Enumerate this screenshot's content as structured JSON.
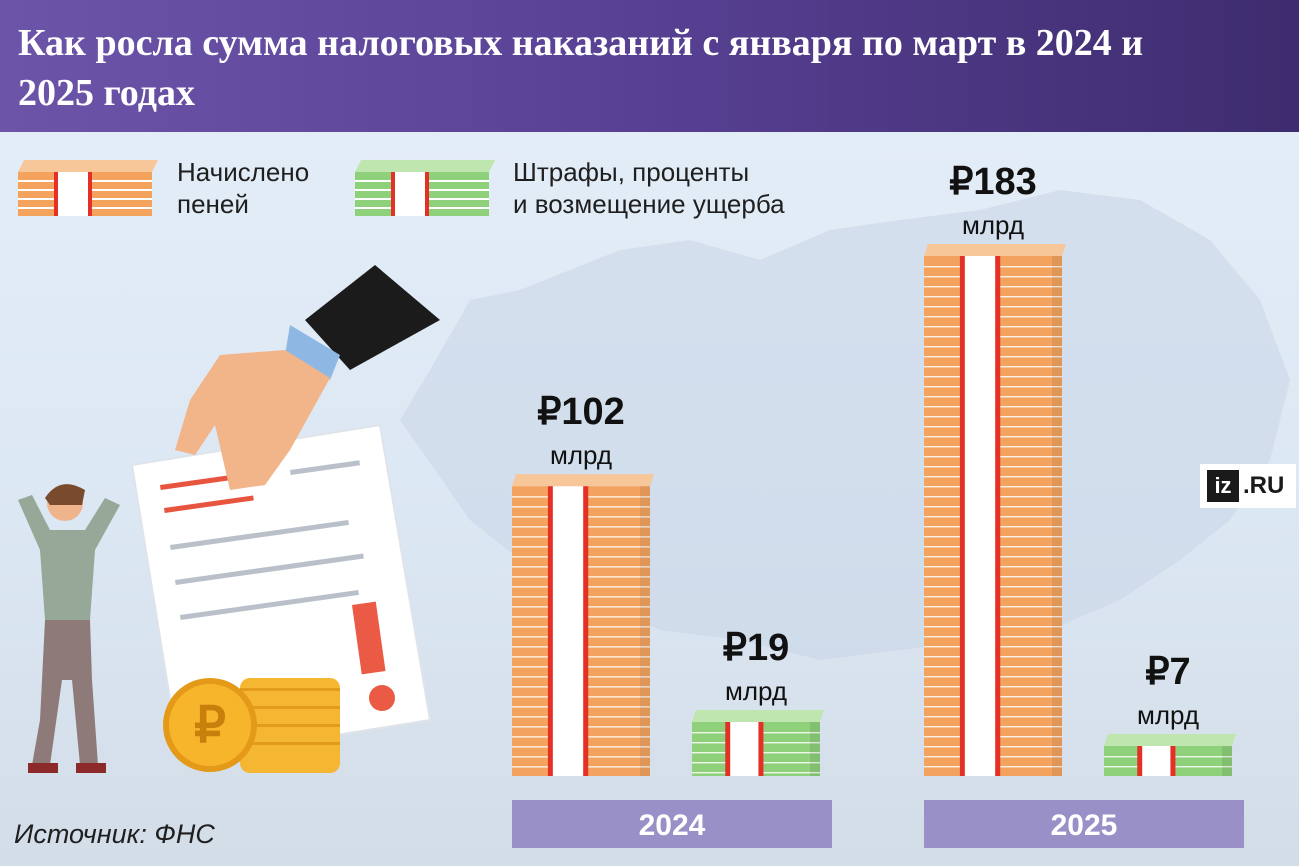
{
  "header": {
    "title": "Как росла сумма налоговых наказаний с января по март в 2024 и 2025 годах"
  },
  "legend": [
    {
      "lines": [
        "Начислено",
        "пеней"
      ],
      "color": "#f4a35e"
    },
    {
      "lines": [
        "Штрафы, проценты",
        "и возмещение ущерба"
      ],
      "color": "#8fd07a"
    }
  ],
  "source": "Источник: ФНС",
  "brand": {
    "mark": "iz",
    "text": ".RU"
  },
  "colors": {
    "penalties": "#f4a35e",
    "fines": "#8fd07a",
    "band": "#e53027",
    "axis_band": "#9a90c8"
  },
  "chart_data": {
    "type": "bar",
    "title": "Как росла сумма налоговых наказаний с января по март в 2024 и 2025 годах",
    "categories": [
      "2024",
      "2025"
    ],
    "series": [
      {
        "name": "Начислено пеней",
        "values": [
          102,
          183
        ]
      },
      {
        "name": "Штрафы, проценты и возмещение ущерба",
        "values": [
          19,
          7
        ]
      }
    ],
    "value_labels": [
      [
        "₽102",
        "₽183"
      ],
      [
        "₽19",
        "₽7"
      ]
    ],
    "unit": "млрд",
    "ylim": [
      0,
      183
    ],
    "grid": false,
    "legend_position": "top-left"
  }
}
